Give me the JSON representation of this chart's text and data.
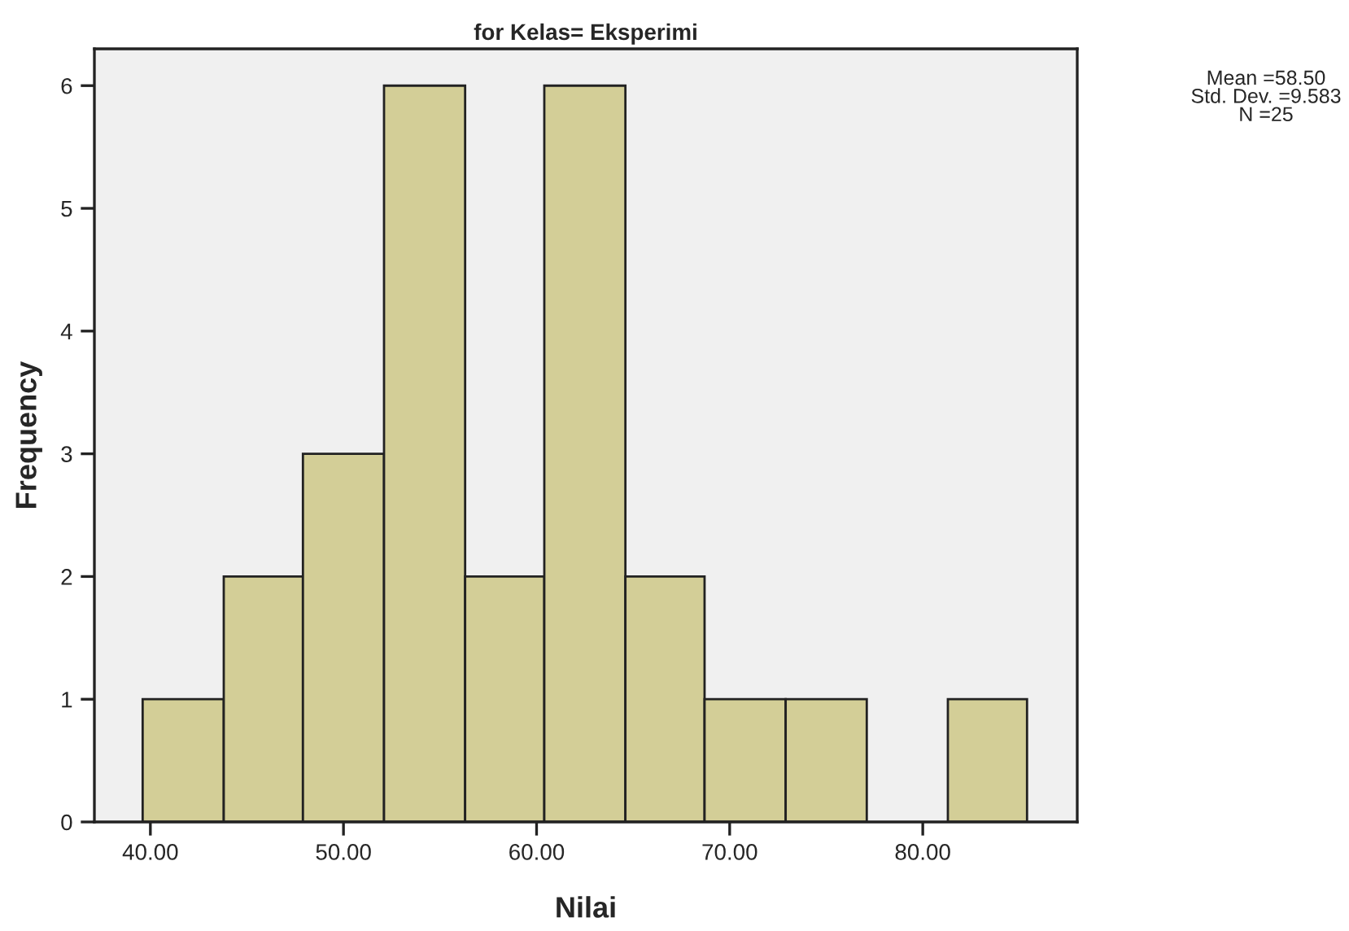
{
  "chart_data": {
    "type": "histogram",
    "title": "for Kelas= Eksperimi",
    "xlabel": "Nilai",
    "ylabel": "Frequency",
    "bins": [
      39.6,
      43.8,
      47.9,
      52.1,
      56.3,
      60.4,
      64.6,
      68.7,
      72.9,
      77.1,
      81.3,
      85.4
    ],
    "values": [
      1,
      2,
      3,
      6,
      2,
      6,
      2,
      1,
      1,
      0,
      1
    ],
    "color": "#d3ce97",
    "xlim": [
      37.1,
      88
    ],
    "xticks": [
      {
        "value": 40,
        "label": "40.00"
      },
      {
        "value": 50,
        "label": "50.00"
      },
      {
        "value": 60,
        "label": "60.00"
      },
      {
        "value": 70,
        "label": "70.00"
      },
      {
        "value": 80,
        "label": "80.00"
      }
    ],
    "ylim": [
      0,
      6.3
    ],
    "yticks": [
      0,
      1,
      2,
      3,
      4,
      5,
      6
    ],
    "annotations": [
      "Mean =58.50\nStd. Dev. =9.583\nN =25"
    ],
    "grid": false,
    "legend": false
  }
}
